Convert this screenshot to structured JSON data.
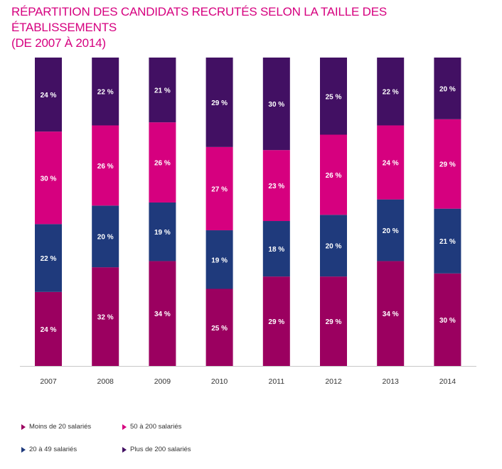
{
  "title_line1": "RÉPARTITION DES CANDIDATS RECRUTÉS SELON LA TAILLE DES ÉTABLISSEMENTS",
  "title_line2": "(DE 2007 À 2014)",
  "colors": {
    "moins20": "#9b0060",
    "c20_49": "#1f3a7c",
    "c50_200": "#d6007f",
    "plus200": "#421063"
  },
  "chart_data": {
    "type": "bar",
    "stacked": true,
    "percent_stacked": true,
    "categories": [
      "2007",
      "2008",
      "2009",
      "2010",
      "2011",
      "2012",
      "2013",
      "2014"
    ],
    "series": [
      {
        "name": "Moins de 20 salariés",
        "key": "moins20",
        "values": [
          24,
          32,
          34,
          25,
          29,
          29,
          34,
          30
        ]
      },
      {
        "name": "20 à 49 salariés",
        "key": "c20_49",
        "values": [
          22,
          20,
          19,
          19,
          18,
          20,
          20,
          21
        ]
      },
      {
        "name": "50 à 200 salariés",
        "key": "c50_200",
        "values": [
          30,
          26,
          26,
          27,
          23,
          26,
          24,
          29
        ]
      },
      {
        "name": "Plus de 200 salariés",
        "key": "plus200",
        "values": [
          24,
          22,
          21,
          29,
          30,
          25,
          22,
          20
        ]
      }
    ],
    "value_suffix": " %",
    "ylim": [
      0,
      100
    ],
    "grid": false,
    "legend_position": "bottom-left"
  },
  "legend": [
    {
      "label": "Moins de 20 salariés",
      "key": "moins20"
    },
    {
      "label": "50 à 200 salariés",
      "key": "c50_200"
    },
    {
      "label": "20 à 49 salariés",
      "key": "c20_49"
    },
    {
      "label": "Plus de 200 salariés",
      "key": "plus200"
    }
  ]
}
